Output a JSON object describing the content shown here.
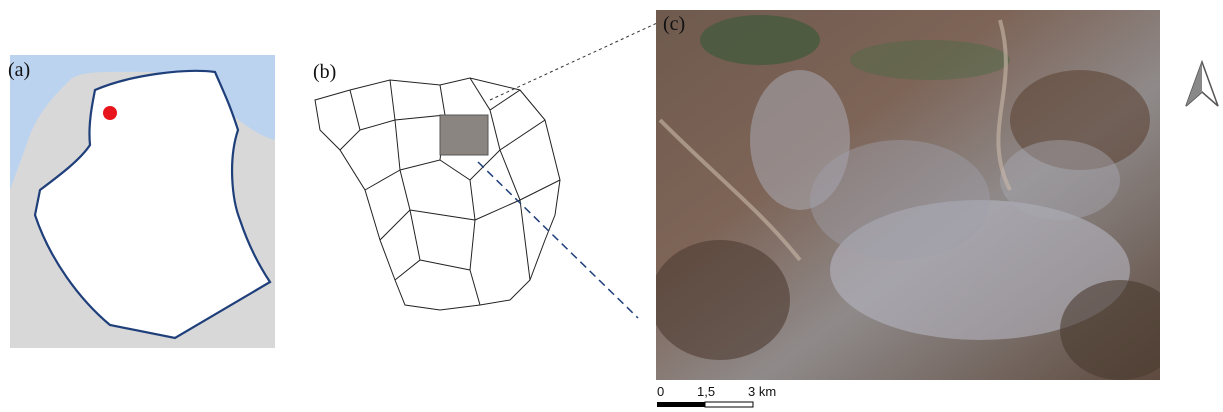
{
  "panels": {
    "a": {
      "label": "(a)"
    },
    "b": {
      "label": "(b)"
    },
    "c": {
      "label": "(c)"
    }
  },
  "scale_bar": {
    "labels": [
      "0",
      "1,5",
      "3 km"
    ]
  }
}
